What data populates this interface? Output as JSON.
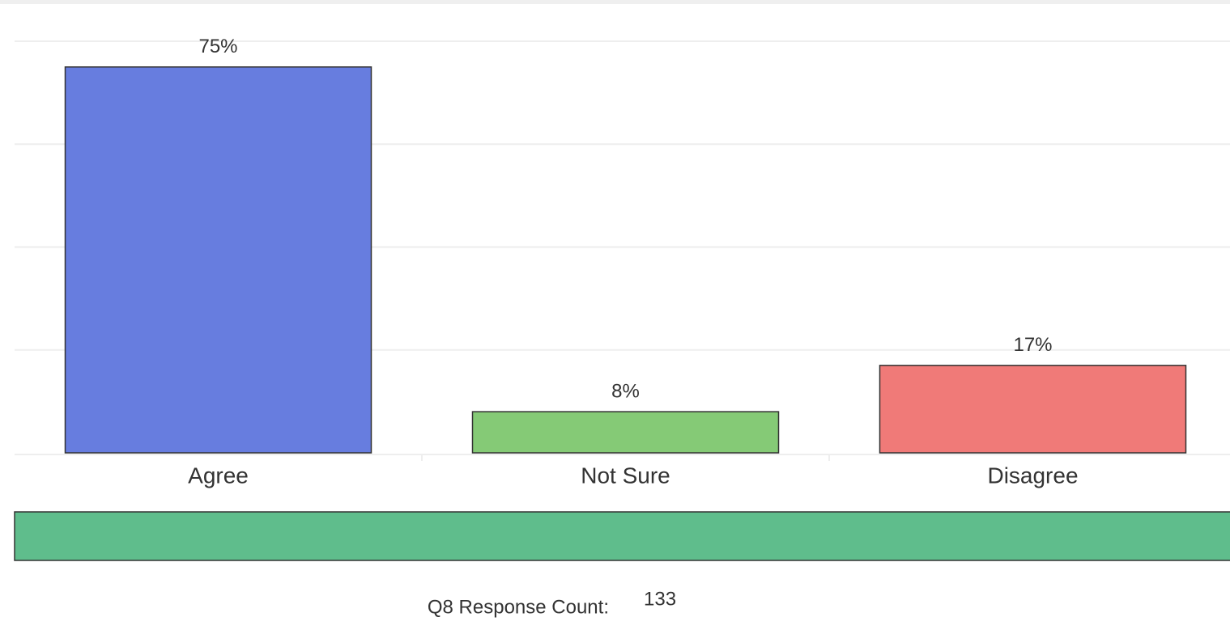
{
  "chart_data": {
    "type": "bar",
    "categories": [
      "Agree",
      "Not Sure",
      "Disagree"
    ],
    "values": [
      75,
      8,
      17
    ],
    "value_labels": [
      "75%",
      "8%",
      "17%"
    ],
    "colors": [
      "#677ddf",
      "#85ca76",
      "#f07a78"
    ],
    "ylim": [
      0,
      80
    ],
    "yticks": [
      0,
      20,
      40,
      60,
      80
    ],
    "grid": true
  },
  "footer": {
    "label": "Q8 Response Count:",
    "count": 133
  }
}
